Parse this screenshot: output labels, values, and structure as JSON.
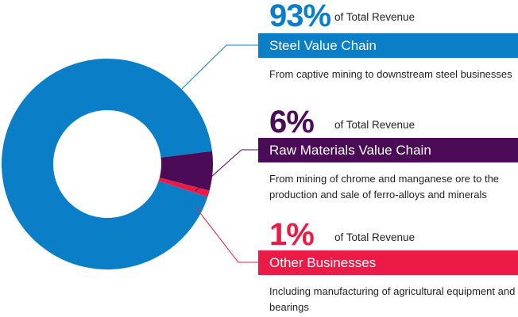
{
  "chart_data": {
    "type": "pie",
    "series": [
      {
        "name": "Steel Value Chain",
        "value": 93,
        "value_label": "93%",
        "value_suffix": "of Total Revenue",
        "description": "From captive mining to downstream steel businesses",
        "color": "#0a7fc8"
      },
      {
        "name": "Raw Materials Value Chain",
        "value": 6,
        "value_label": "6%",
        "value_suffix": "of Total Revenue",
        "description": "From mining of chrome and manganese ore to the production and sale of ferro-alloys and minerals",
        "color": "#4b0b56"
      },
      {
        "name": "Other Businesses",
        "value": 1,
        "value_label": "1%",
        "value_suffix": "of Total Revenue",
        "description": "Including manufacturing of agricultural equipment and bearings",
        "color": "#ec1a47"
      }
    ]
  }
}
